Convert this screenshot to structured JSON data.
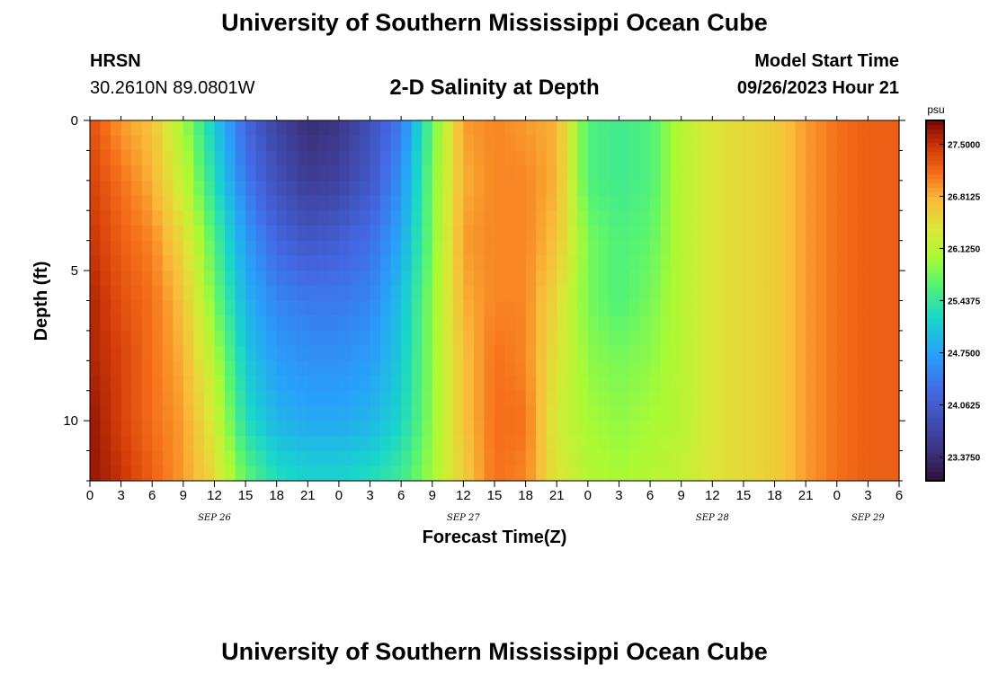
{
  "header": {
    "title": "University of Southern Mississippi Ocean Cube",
    "station": "HRSN",
    "coords": "30.2610N  89.0801W",
    "model_start_label": "Model Start Time",
    "model_start_value": "09/26/2023 Hour 21"
  },
  "footer": {
    "title": "University of Southern Mississippi Ocean Cube"
  },
  "chart_data": {
    "type": "heatmap",
    "title": "2-D Salinity at Depth",
    "xlabel": "Forecast Time(Z)",
    "ylabel": "Depth (ft)",
    "x_tick_labels": [
      "0",
      "3",
      "6",
      "9",
      "12",
      "15",
      "18",
      "21",
      "0",
      "3",
      "6",
      "9",
      "12",
      "15",
      "18",
      "21",
      "0",
      "3",
      "6",
      "9",
      "12",
      "15",
      "18",
      "21",
      "0",
      "3",
      "6"
    ],
    "date_labels": [
      "SEP 26",
      "SEP 27",
      "SEP 28",
      "SEP 29"
    ],
    "y_tick_labels": [
      "0",
      "5",
      "10"
    ],
    "xlim_hours": [
      0,
      78
    ],
    "ylim_ft": [
      0,
      12
    ],
    "y_inverted": true,
    "colorbar": {
      "unit": "psu",
      "min": 23.0625,
      "max": 27.8125,
      "tick_labels": [
        "27.5000",
        "26.8125",
        "26.1250",
        "25.4375",
        "24.7500",
        "24.0625",
        "23.3750"
      ]
    },
    "x_hours": [
      0,
      3,
      6,
      9,
      12,
      15,
      18,
      21,
      24,
      27,
      30,
      33,
      36,
      39,
      42,
      45,
      48,
      51,
      54,
      57,
      60,
      63,
      66,
      69,
      72,
      75,
      78
    ],
    "depths_ft": [
      0,
      2,
      4,
      6,
      8,
      10,
      12
    ],
    "salinity_psu": [
      [
        27.3,
        26.9,
        26.7,
        26.0,
        25.1,
        24.2,
        23.7,
        23.4,
        23.5,
        23.9,
        24.4,
        25.7,
        26.9,
        27.0,
        26.9,
        26.8,
        25.6,
        25.5,
        25.6,
        26.1,
        26.4,
        26.5,
        26.6,
        26.9,
        27.1,
        27.2,
        27.2
      ],
      [
        27.4,
        27.1,
        26.8,
        26.2,
        25.3,
        24.4,
        23.9,
        23.6,
        23.7,
        24.0,
        24.6,
        25.8,
        26.8,
        27.0,
        27.0,
        26.8,
        25.6,
        25.5,
        25.6,
        26.1,
        26.4,
        26.5,
        26.6,
        26.9,
        27.1,
        27.2,
        27.2
      ],
      [
        27.5,
        27.2,
        27.0,
        26.5,
        25.6,
        24.7,
        24.2,
        24.0,
        24.1,
        24.3,
        24.8,
        25.8,
        26.9,
        27.0,
        27.0,
        26.7,
        25.8,
        25.6,
        25.7,
        26.1,
        26.4,
        26.5,
        26.6,
        26.9,
        27.1,
        27.2,
        27.2
      ],
      [
        27.6,
        27.3,
        27.1,
        26.7,
        25.8,
        24.9,
        24.5,
        24.4,
        24.4,
        24.5,
        25.0,
        25.9,
        26.8,
        27.0,
        27.0,
        26.5,
        25.8,
        25.6,
        25.8,
        26.1,
        26.4,
        26.5,
        26.6,
        26.9,
        27.1,
        27.2,
        27.2
      ],
      [
        27.6,
        27.4,
        27.1,
        26.8,
        26.1,
        25.1,
        24.7,
        24.6,
        24.6,
        24.7,
        25.1,
        25.9,
        26.7,
        27.1,
        27.0,
        26.4,
        25.9,
        25.8,
        25.9,
        26.1,
        26.4,
        26.5,
        26.6,
        26.9,
        27.1,
        27.2,
        27.2
      ],
      [
        27.7,
        27.4,
        27.1,
        26.9,
        26.3,
        25.3,
        24.9,
        24.8,
        24.8,
        24.9,
        25.2,
        25.9,
        26.7,
        27.1,
        27.1,
        26.3,
        26.0,
        25.9,
        26.0,
        26.1,
        26.4,
        26.5,
        26.6,
        26.9,
        27.1,
        27.2,
        27.2
      ],
      [
        27.7,
        27.5,
        27.2,
        26.9,
        26.5,
        25.7,
        25.3,
        25.2,
        25.2,
        25.3,
        25.5,
        26.0,
        26.6,
        27.1,
        27.0,
        26.4,
        26.1,
        26.0,
        26.1,
        26.2,
        26.4,
        26.5,
        26.6,
        26.9,
        27.1,
        27.2,
        27.2
      ]
    ]
  }
}
